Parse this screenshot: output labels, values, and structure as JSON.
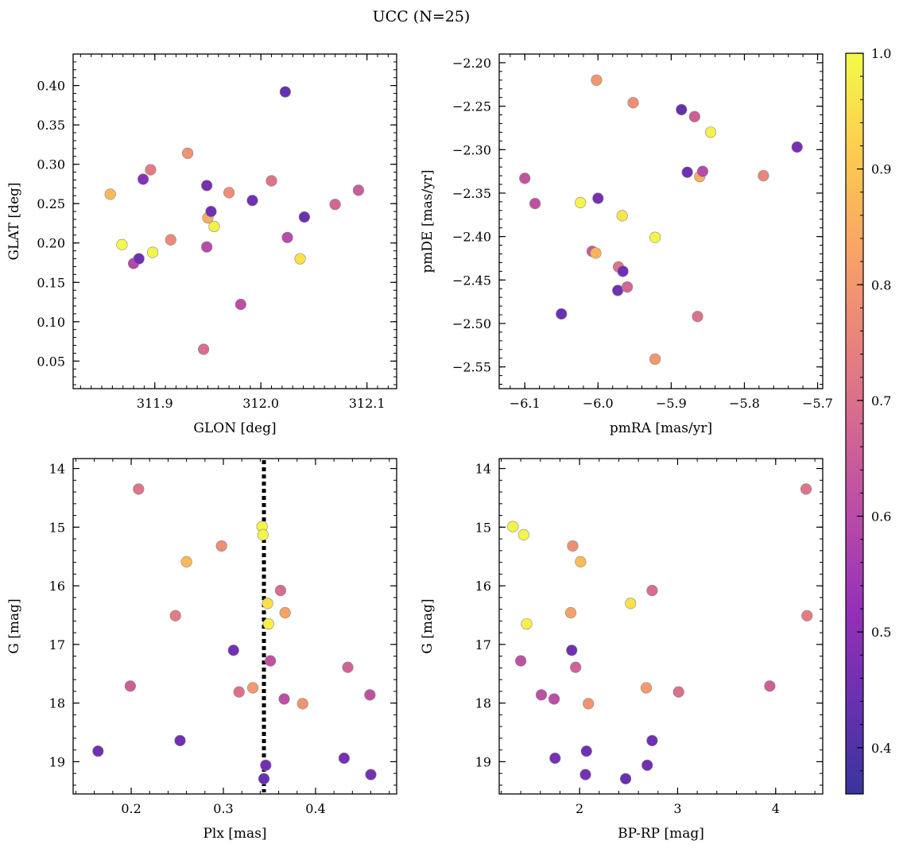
{
  "title": "UCC (N=25)",
  "colorbar": {
    "min": 0.36,
    "max": 1.0,
    "ticks": [
      "0.4",
      "0.5",
      "0.6",
      "0.7",
      "0.8",
      "0.9",
      "1.0"
    ],
    "colormap": "plasma"
  },
  "chart_data": [
    {
      "type": "scatter",
      "name": "glon-glat",
      "xlabel": "GLON [deg]",
      "ylabel": "GLAT [deg]",
      "xlim": [
        311.823,
        312.128
      ],
      "ylim": [
        0.015,
        0.44
      ],
      "xticks": [
        {
          "v": 311.9,
          "label": "311.9"
        },
        {
          "v": 312.0,
          "label": "312.0"
        },
        {
          "v": 312.1,
          "label": "312.1"
        }
      ],
      "yticks": [
        {
          "v": 0.05,
          "label": "0.05"
        },
        {
          "v": 0.1,
          "label": "0.10"
        },
        {
          "v": 0.15,
          "label": "0.15"
        },
        {
          "v": 0.2,
          "label": "0.20"
        },
        {
          "v": 0.25,
          "label": "0.25"
        },
        {
          "v": 0.3,
          "label": "0.30"
        },
        {
          "v": 0.35,
          "label": "0.35"
        },
        {
          "v": 0.4,
          "label": "0.40"
        }
      ],
      "x_minor": 0.01,
      "y_minor": 0.01,
      "y_inverted": false,
      "points": [
        {
          "x": 311.858,
          "y": 0.262,
          "c": 0.87
        },
        {
          "x": 311.869,
          "y": 0.198,
          "c": 1.0
        },
        {
          "x": 311.88,
          "y": 0.174,
          "c": 0.57
        },
        {
          "x": 311.885,
          "y": 0.18,
          "c": 0.42
        },
        {
          "x": 311.889,
          "y": 0.281,
          "c": 0.47
        },
        {
          "x": 311.896,
          "y": 0.293,
          "c": 0.72
        },
        {
          "x": 311.898,
          "y": 0.188,
          "c": 0.99
        },
        {
          "x": 311.915,
          "y": 0.204,
          "c": 0.76
        },
        {
          "x": 311.931,
          "y": 0.314,
          "c": 0.78
        },
        {
          "x": 311.946,
          "y": 0.065,
          "c": 0.68
        },
        {
          "x": 311.949,
          "y": 0.273,
          "c": 0.43
        },
        {
          "x": 311.949,
          "y": 0.195,
          "c": 0.58
        },
        {
          "x": 311.95,
          "y": 0.232,
          "c": 0.85
        },
        {
          "x": 311.953,
          "y": 0.24,
          "c": 0.42
        },
        {
          "x": 311.956,
          "y": 0.221,
          "c": 0.98
        },
        {
          "x": 311.97,
          "y": 0.264,
          "c": 0.77
        },
        {
          "x": 311.981,
          "y": 0.122,
          "c": 0.59
        },
        {
          "x": 311.992,
          "y": 0.254,
          "c": 0.42
        },
        {
          "x": 312.01,
          "y": 0.279,
          "c": 0.7
        },
        {
          "x": 312.023,
          "y": 0.392,
          "c": 0.4
        },
        {
          "x": 312.025,
          "y": 0.207,
          "c": 0.58
        },
        {
          "x": 312.037,
          "y": 0.18,
          "c": 0.95
        },
        {
          "x": 312.041,
          "y": 0.233,
          "c": 0.41
        },
        {
          "x": 312.07,
          "y": 0.249,
          "c": 0.66
        },
        {
          "x": 312.092,
          "y": 0.267,
          "c": 0.63
        }
      ]
    },
    {
      "type": "scatter",
      "name": "pmra-pmde",
      "xlabel": "pmRA [mas/yr]",
      "ylabel": "pmDE [mas/yr]",
      "xlim": [
        -6.135,
        -5.693
      ],
      "ylim": [
        -2.575,
        -2.19
      ],
      "xticks": [
        {
          "v": -6.1,
          "label": "−6.1"
        },
        {
          "v": -6.0,
          "label": "−6.0"
        },
        {
          "v": -5.9,
          "label": "−5.9"
        },
        {
          "v": -5.8,
          "label": "−5.8"
        },
        {
          "v": -5.7,
          "label": "−5.7"
        }
      ],
      "yticks": [
        {
          "v": -2.55,
          "label": "−2.55"
        },
        {
          "v": -2.5,
          "label": "−2.50"
        },
        {
          "v": -2.45,
          "label": "−2.45"
        },
        {
          "v": -2.4,
          "label": "−2.40"
        },
        {
          "v": -2.35,
          "label": "−2.35"
        },
        {
          "v": -2.3,
          "label": "−2.30"
        },
        {
          "v": -2.25,
          "label": "−2.25"
        },
        {
          "v": -2.2,
          "label": "−2.20"
        }
      ],
      "x_minor": 0.02,
      "y_minor": 0.01,
      "y_inverted": false,
      "points": [
        {
          "x": -6.1,
          "y": -2.333,
          "c": 0.61
        },
        {
          "x": -6.086,
          "y": -2.362,
          "c": 0.6
        },
        {
          "x": -6.05,
          "y": -2.489,
          "c": 0.41
        },
        {
          "x": -6.024,
          "y": -2.361,
          "c": 0.99
        },
        {
          "x": -6.008,
          "y": -2.417,
          "c": 0.63
        },
        {
          "x": -6.003,
          "y": -2.419,
          "c": 0.86
        },
        {
          "x": -6.002,
          "y": -2.22,
          "c": 0.79
        },
        {
          "x": -6.0,
          "y": -2.356,
          "c": 0.43
        },
        {
          "x": -5.973,
          "y": -2.462,
          "c": 0.42
        },
        {
          "x": -5.972,
          "y": -2.435,
          "c": 0.7
        },
        {
          "x": -5.967,
          "y": -2.376,
          "c": 0.96
        },
        {
          "x": -5.966,
          "y": -2.44,
          "c": 0.42
        },
        {
          "x": -5.96,
          "y": -2.458,
          "c": 0.66
        },
        {
          "x": -5.952,
          "y": -2.246,
          "c": 0.77
        },
        {
          "x": -5.922,
          "y": -2.401,
          "c": 0.99
        },
        {
          "x": -5.922,
          "y": -2.541,
          "c": 0.79
        },
        {
          "x": -5.886,
          "y": -2.254,
          "c": 0.4
        },
        {
          "x": -5.878,
          "y": -2.326,
          "c": 0.42
        },
        {
          "x": -5.868,
          "y": -2.262,
          "c": 0.64
        },
        {
          "x": -5.864,
          "y": -2.492,
          "c": 0.69
        },
        {
          "x": -5.861,
          "y": -2.331,
          "c": 0.85
        },
        {
          "x": -5.857,
          "y": -2.325,
          "c": 0.58
        },
        {
          "x": -5.846,
          "y": -2.28,
          "c": 0.98
        },
        {
          "x": -5.774,
          "y": -2.33,
          "c": 0.75
        },
        {
          "x": -5.728,
          "y": -2.297,
          "c": 0.44
        }
      ]
    },
    {
      "type": "scatter",
      "name": "plx-g",
      "xlabel": "Plx [mas]",
      "ylabel": "G [mag]",
      "xlim": [
        0.137,
        0.488
      ],
      "ylim": [
        13.83,
        19.55
      ],
      "xticks": [
        {
          "v": 0.2,
          "label": "0.2"
        },
        {
          "v": 0.3,
          "label": "0.3"
        },
        {
          "v": 0.4,
          "label": "0.4"
        }
      ],
      "yticks": [
        {
          "v": 14,
          "label": "14"
        },
        {
          "v": 15,
          "label": "15"
        },
        {
          "v": 16,
          "label": "16"
        },
        {
          "v": 17,
          "label": "17"
        },
        {
          "v": 18,
          "label": "18"
        },
        {
          "v": 19,
          "label": "19"
        }
      ],
      "x_minor": 0.02,
      "y_minor": 0.2,
      "y_inverted": true,
      "vline": 0.344,
      "points": [
        {
          "x": 0.164,
          "y": 18.82,
          "c": 0.42
        },
        {
          "x": 0.199,
          "y": 17.71,
          "c": 0.64
        },
        {
          "x": 0.208,
          "y": 14.35,
          "c": 0.7
        },
        {
          "x": 0.248,
          "y": 16.51,
          "c": 0.72
        },
        {
          "x": 0.253,
          "y": 18.64,
          "c": 0.42
        },
        {
          "x": 0.26,
          "y": 15.59,
          "c": 0.87
        },
        {
          "x": 0.298,
          "y": 15.32,
          "c": 0.77
        },
        {
          "x": 0.311,
          "y": 17.1,
          "c": 0.42
        },
        {
          "x": 0.317,
          "y": 17.81,
          "c": 0.69
        },
        {
          "x": 0.332,
          "y": 17.74,
          "c": 0.8
        },
        {
          "x": 0.342,
          "y": 14.99,
          "c": 0.99
        },
        {
          "x": 0.343,
          "y": 15.13,
          "c": 0.99
        },
        {
          "x": 0.344,
          "y": 19.29,
          "c": 0.4
        },
        {
          "x": 0.346,
          "y": 19.06,
          "c": 0.42
        },
        {
          "x": 0.348,
          "y": 16.3,
          "c": 0.95
        },
        {
          "x": 0.349,
          "y": 16.65,
          "c": 0.98
        },
        {
          "x": 0.351,
          "y": 17.28,
          "c": 0.6
        },
        {
          "x": 0.362,
          "y": 16.08,
          "c": 0.68
        },
        {
          "x": 0.366,
          "y": 17.93,
          "c": 0.59
        },
        {
          "x": 0.367,
          "y": 16.46,
          "c": 0.82
        },
        {
          "x": 0.386,
          "y": 18.01,
          "c": 0.78
        },
        {
          "x": 0.431,
          "y": 18.94,
          "c": 0.43
        },
        {
          "x": 0.435,
          "y": 17.39,
          "c": 0.65
        },
        {
          "x": 0.459,
          "y": 17.86,
          "c": 0.6
        },
        {
          "x": 0.46,
          "y": 19.22,
          "c": 0.43
        }
      ]
    },
    {
      "type": "scatter",
      "name": "bprp-g",
      "xlabel": "BP-RP [mag]",
      "ylabel": "G [mag]",
      "xlim": [
        1.18,
        4.48
      ],
      "ylim": [
        13.83,
        19.55
      ],
      "xticks": [
        {
          "v": 2,
          "label": "2"
        },
        {
          "v": 3,
          "label": "3"
        },
        {
          "v": 4,
          "label": "4"
        }
      ],
      "yticks": [
        {
          "v": 14,
          "label": "14"
        },
        {
          "v": 15,
          "label": "15"
        },
        {
          "v": 16,
          "label": "16"
        },
        {
          "v": 17,
          "label": "17"
        },
        {
          "v": 18,
          "label": "18"
        },
        {
          "v": 19,
          "label": "19"
        }
      ],
      "x_minor": 0.2,
      "y_minor": 0.2,
      "y_inverted": true,
      "points": [
        {
          "x": 1.32,
          "y": 14.99,
          "c": 0.99
        },
        {
          "x": 1.4,
          "y": 17.28,
          "c": 0.6
        },
        {
          "x": 1.43,
          "y": 15.13,
          "c": 0.99
        },
        {
          "x": 1.46,
          "y": 16.65,
          "c": 0.98
        },
        {
          "x": 1.61,
          "y": 17.86,
          "c": 0.6
        },
        {
          "x": 1.74,
          "y": 17.93,
          "c": 0.59
        },
        {
          "x": 1.75,
          "y": 18.94,
          "c": 0.43
        },
        {
          "x": 1.91,
          "y": 16.46,
          "c": 0.82
        },
        {
          "x": 1.92,
          "y": 17.1,
          "c": 0.42
        },
        {
          "x": 1.93,
          "y": 15.32,
          "c": 0.77
        },
        {
          "x": 1.96,
          "y": 17.39,
          "c": 0.65
        },
        {
          "x": 2.01,
          "y": 15.59,
          "c": 0.87
        },
        {
          "x": 2.06,
          "y": 19.22,
          "c": 0.43
        },
        {
          "x": 2.07,
          "y": 18.82,
          "c": 0.42
        },
        {
          "x": 2.09,
          "y": 18.01,
          "c": 0.78
        },
        {
          "x": 2.47,
          "y": 19.29,
          "c": 0.4
        },
        {
          "x": 2.52,
          "y": 16.3,
          "c": 0.95
        },
        {
          "x": 2.68,
          "y": 17.74,
          "c": 0.8
        },
        {
          "x": 2.69,
          "y": 19.06,
          "c": 0.42
        },
        {
          "x": 2.74,
          "y": 16.08,
          "c": 0.68
        },
        {
          "x": 2.74,
          "y": 18.64,
          "c": 0.42
        },
        {
          "x": 3.01,
          "y": 17.81,
          "c": 0.69
        },
        {
          "x": 3.94,
          "y": 17.71,
          "c": 0.64
        },
        {
          "x": 4.31,
          "y": 14.35,
          "c": 0.7
        },
        {
          "x": 4.32,
          "y": 16.51,
          "c": 0.72
        }
      ]
    }
  ]
}
